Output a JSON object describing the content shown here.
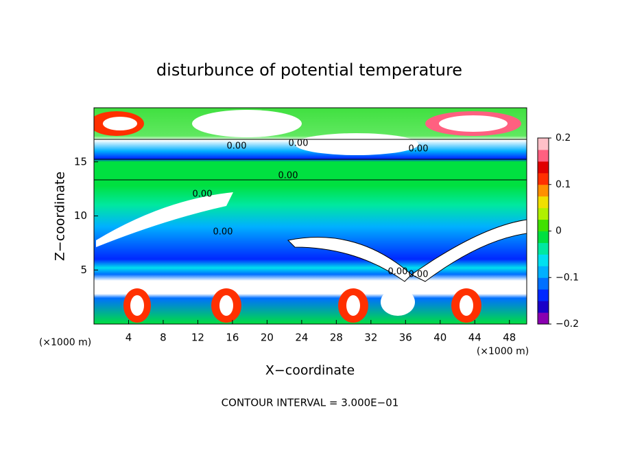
{
  "chart_data": {
    "type": "contour",
    "title": "disturbunce of potential temperature",
    "xlabel": "X−coordinate",
    "ylabel": "Z−coordinate",
    "x_unit_left": "(×1000 m)",
    "x_unit_right": "(×1000 m)",
    "footer": "CONTOUR INTERVAL = 3.000E−01",
    "xlim": [
      0,
      50
    ],
    "xticks": [
      4,
      8,
      12,
      16,
      20,
      24,
      28,
      32,
      36,
      40,
      44,
      48
    ],
    "ylim": [
      0,
      20
    ],
    "yticks": [
      5,
      10,
      15
    ],
    "contour_labels": [
      "0.00",
      "0.00",
      "0.00",
      "0.00",
      "0.00",
      "0.00",
      "0.00",
      "0.00"
    ],
    "colorbar": {
      "lim": [
        -0.2,
        0.2
      ],
      "ticks": [
        {
          "value": 0.2,
          "label": "0.2"
        },
        {
          "value": 0.1,
          "label": "0.1"
        },
        {
          "value": 0,
          "label": "0"
        },
        {
          "value": -0.1,
          "label": "−0.1"
        },
        {
          "value": -0.2,
          "label": "−0.2"
        }
      ],
      "colors": [
        "#8a00b0",
        "#1a00c8",
        "#0028ff",
        "#0070ff",
        "#00b0ff",
        "#00e0f0",
        "#00e8a0",
        "#00e040",
        "#40e000",
        "#b0f000",
        "#f0e000",
        "#ff9000",
        "#ff3000",
        "#e00000",
        "#ff6080",
        "#ffc0c8"
      ]
    }
  }
}
